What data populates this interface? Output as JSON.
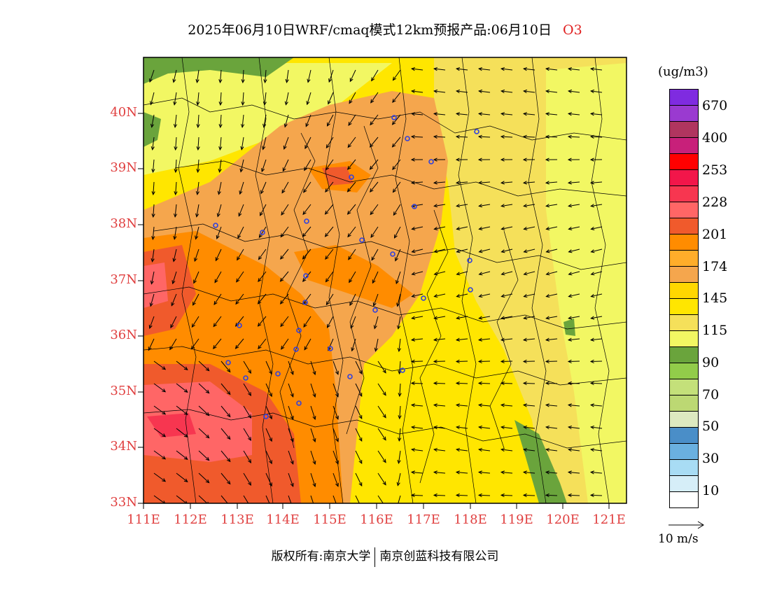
{
  "title": {
    "main": "2025年06月10日WRF/cmaq模式12km预报产品:06月10日",
    "species": "O3"
  },
  "axes": {
    "lat_labels": [
      "40N",
      "39N",
      "38N",
      "37N",
      "36N",
      "35N",
      "34N",
      "33N"
    ],
    "lon_labels": [
      "111E",
      "112E",
      "113E",
      "114E",
      "115E",
      "116E",
      "117E",
      "118E",
      "119E",
      "120E",
      "121E"
    ]
  },
  "legend": {
    "unit": "(ug/m3)",
    "boxes": [
      "#7f2be0",
      "#9a3ad0",
      "#b0355f",
      "#c8207a",
      "#ff0000",
      "#f2164a",
      "#f73650",
      "#ff6666",
      "#f05a2c",
      "#ff8c00",
      "#ffad2a",
      "#f5a64d",
      "#ffd700",
      "#ffe600",
      "#f5e05a",
      "#f2f763",
      "#6aa43c",
      "#92cc4a",
      "#c4e07a",
      "#bcd873",
      "#dde9c0",
      "#4a8ec8",
      "#6ab0e0",
      "#a8dcf4",
      "#d6eef8",
      "#ffffff"
    ],
    "labels": [
      "670",
      "400",
      "253",
      "228",
      "201",
      "174",
      "145",
      "115",
      "90",
      "70",
      "50",
      "30",
      "10"
    ]
  },
  "wind_reference": "10 m/s",
  "footer": {
    "copyright": "版权所有:南京大学",
    "company": "南京创蓝科技有限公司"
  },
  "colors": {
    "tick_label": "#e04040",
    "station_marker": "#3040e0"
  }
}
